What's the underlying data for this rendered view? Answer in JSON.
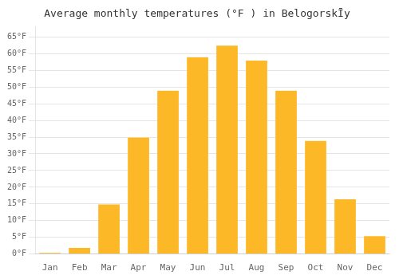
{
  "chart_data": {
    "type": "bar",
    "title": "Average monthly temperatures (°F ) in BelogorskĪy",
    "categories": [
      "Jan",
      "Feb",
      "Mar",
      "Apr",
      "May",
      "Jun",
      "Jul",
      "Aug",
      "Sep",
      "Oct",
      "Nov",
      "Dec"
    ],
    "values": [
      0.5,
      2,
      15,
      35,
      49,
      59,
      62.5,
      58,
      49,
      34,
      16.5,
      5.5
    ],
    "color": "#FDB827",
    "ylim": [
      0,
      68
    ],
    "yticks": [
      {
        "value": 0,
        "label": "0°F"
      },
      {
        "value": 5,
        "label": "5°F"
      },
      {
        "value": 10,
        "label": "10°F"
      },
      {
        "value": 15,
        "label": "15°F"
      },
      {
        "value": 20,
        "label": "20°F"
      },
      {
        "value": 25,
        "label": "25°F"
      },
      {
        "value": 30,
        "label": "30°F"
      },
      {
        "value": 35,
        "label": "35°F"
      },
      {
        "value": 40,
        "label": "40°F"
      },
      {
        "value": 45,
        "label": "45°F"
      },
      {
        "value": 50,
        "label": "50°F"
      },
      {
        "value": 55,
        "label": "55°F"
      },
      {
        "value": 60,
        "label": "60°F"
      },
      {
        "value": 65,
        "label": "65°F"
      }
    ],
    "grid": true
  }
}
